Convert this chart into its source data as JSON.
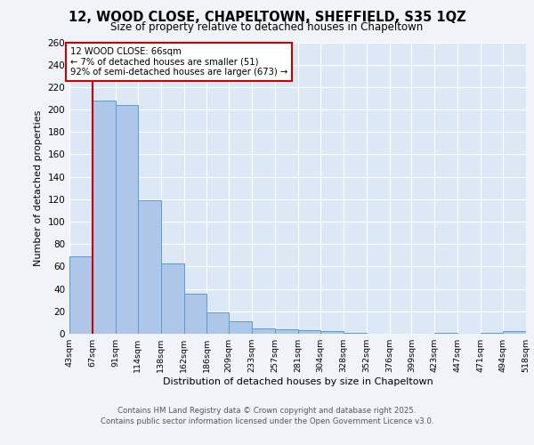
{
  "title_line1": "12, WOOD CLOSE, CHAPELTOWN, SHEFFIELD, S35 1QZ",
  "title_line2": "Size of property relative to detached houses in Chapeltown",
  "xlabel": "Distribution of detached houses by size in Chapeltown",
  "ylabel": "Number of detached properties",
  "bins": [
    43,
    67,
    91,
    114,
    138,
    162,
    186,
    209,
    233,
    257,
    281,
    304,
    328,
    352,
    376,
    399,
    423,
    447,
    471,
    494,
    518
  ],
  "bin_labels": [
    "43sqm",
    "67sqm",
    "91sqm",
    "114sqm",
    "138sqm",
    "162sqm",
    "186sqm",
    "209sqm",
    "233sqm",
    "257sqm",
    "281sqm",
    "304sqm",
    "328sqm",
    "352sqm",
    "376sqm",
    "399sqm",
    "423sqm",
    "447sqm",
    "471sqm",
    "494sqm",
    "518sqm"
  ],
  "values": [
    69,
    208,
    204,
    119,
    63,
    36,
    19,
    11,
    5,
    4,
    3,
    2,
    1,
    0,
    0,
    0,
    1,
    0,
    1,
    2
  ],
  "bar_color": "#aec6e8",
  "bar_edge_color": "#5b9bd5",
  "red_line_x": 67,
  "annotation_title": "12 WOOD CLOSE: 66sqm",
  "annotation_line2": "← 7% of detached houses are smaller (51)",
  "annotation_line3": "92% of semi-detached houses are larger (673) →",
  "annotation_box_color": "#ffffff",
  "annotation_border_color": "#cc0000",
  "red_line_color": "#cc0000",
  "ylim": [
    0,
    260
  ],
  "yticks": [
    0,
    20,
    40,
    60,
    80,
    100,
    120,
    140,
    160,
    180,
    200,
    220,
    240,
    260
  ],
  "footer_line1": "Contains HM Land Registry data © Crown copyright and database right 2025.",
  "footer_line2": "Contains public sector information licensed under the Open Government Licence v3.0.",
  "bg_color": "#f0f4f8",
  "plot_bg_color": "#dce8f5"
}
